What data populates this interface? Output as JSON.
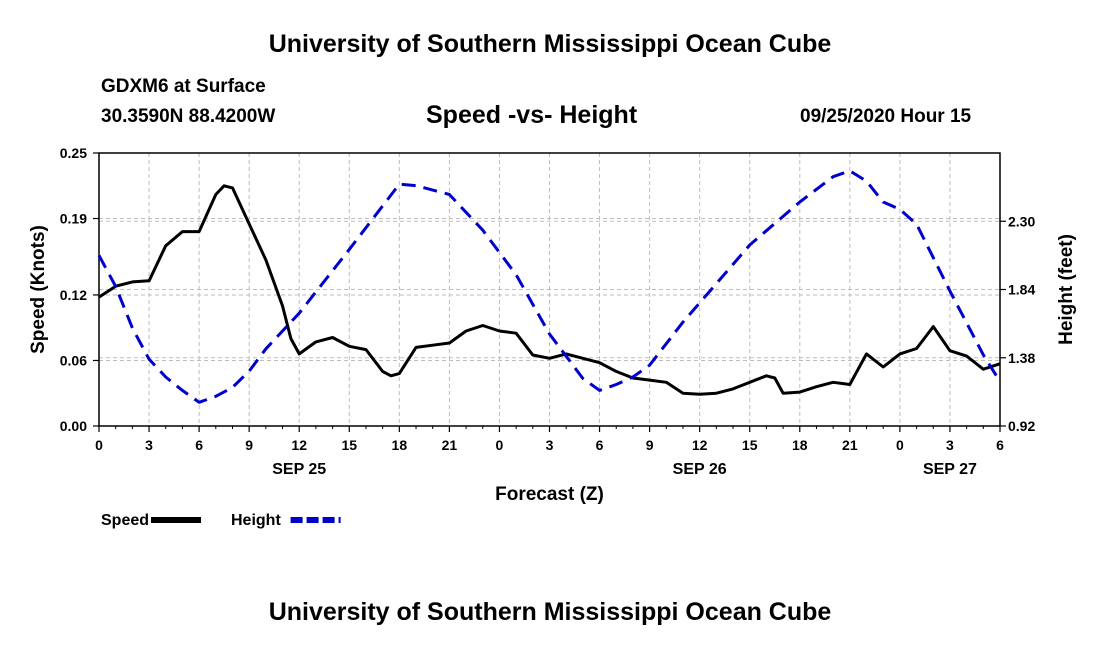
{
  "header": {
    "title": "University of Southern Mississippi Ocean Cube",
    "station": "GDXM6 at Surface",
    "coords": "30.3590N 88.4200W",
    "chart_title": "Speed -vs- Height",
    "timestamp": "09/25/2020 Hour 15"
  },
  "footer": {
    "title": "University of Southern Mississippi Ocean Cube"
  },
  "chart_data": {
    "type": "line",
    "title": "Speed -vs- Height",
    "xlabel": "Forecast (Z)",
    "ylabel": "Speed (Knots)",
    "y2label": "Height (feet)",
    "grid": true,
    "x_range": [
      0,
      54
    ],
    "x_ticks": [
      {
        "h": 0,
        "label": "0"
      },
      {
        "h": 3,
        "label": "3"
      },
      {
        "h": 6,
        "label": "6"
      },
      {
        "h": 9,
        "label": "9"
      },
      {
        "h": 12,
        "label": "12"
      },
      {
        "h": 15,
        "label": "15"
      },
      {
        "h": 18,
        "label": "18"
      },
      {
        "h": 21,
        "label": "21"
      },
      {
        "h": 24,
        "label": "0"
      },
      {
        "h": 27,
        "label": "3"
      },
      {
        "h": 30,
        "label": "6"
      },
      {
        "h": 33,
        "label": "9"
      },
      {
        "h": 36,
        "label": "12"
      },
      {
        "h": 39,
        "label": "15"
      },
      {
        "h": 42,
        "label": "18"
      },
      {
        "h": 45,
        "label": "21"
      },
      {
        "h": 48,
        "label": "0"
      },
      {
        "h": 51,
        "label": "3"
      },
      {
        "h": 54,
        "label": "6"
      }
    ],
    "date_labels": [
      {
        "h": 12,
        "label": "SEP 25"
      },
      {
        "h": 36,
        "label": "SEP 26"
      },
      {
        "h": 51,
        "label": "SEP 27"
      }
    ],
    "ylim_left": [
      0,
      0.25
    ],
    "yticks_left": [
      "0.00",
      "0.06",
      "0.12",
      "0.19",
      "0.25"
    ],
    "ylim_right": [
      0.92,
      2.76
    ],
    "yticks_right": [
      "0.92",
      "1.38",
      "1.84",
      "2.30"
    ],
    "legend": [
      {
        "name": "Speed",
        "color": "#000000",
        "dashed": false
      },
      {
        "name": "Height",
        "color": "#0000cc",
        "dashed": true
      }
    ],
    "series": [
      {
        "name": "Speed",
        "axis": "left",
        "color": "#000000",
        "x": [
          0,
          1,
          2,
          3,
          4,
          5,
          6,
          7,
          7.5,
          8,
          9,
          10,
          11,
          11.5,
          12,
          13,
          14,
          15,
          16,
          17,
          17.5,
          18,
          19,
          20,
          21,
          22,
          23,
          24,
          25,
          26,
          27,
          28,
          29,
          30,
          31,
          32,
          33,
          34,
          35,
          36,
          37,
          38,
          39,
          40,
          40.5,
          41,
          42,
          43,
          44,
          45,
          46,
          47,
          48,
          49,
          50,
          51,
          52,
          53,
          54
        ],
        "y": [
          0.118,
          0.128,
          0.132,
          0.133,
          0.165,
          0.178,
          0.178,
          0.212,
          0.22,
          0.218,
          0.185,
          0.152,
          0.11,
          0.08,
          0.066,
          0.077,
          0.081,
          0.073,
          0.07,
          0.05,
          0.046,
          0.048,
          0.072,
          0.074,
          0.076,
          0.087,
          0.092,
          0.087,
          0.085,
          0.065,
          0.062,
          0.066,
          0.062,
          0.058,
          0.05,
          0.044,
          0.042,
          0.04,
          0.03,
          0.029,
          0.03,
          0.034,
          0.04,
          0.046,
          0.044,
          0.03,
          0.031,
          0.036,
          0.04,
          0.038,
          0.066,
          0.054,
          0.066,
          0.071,
          0.091,
          0.069,
          0.064,
          0.052,
          0.057
        ]
      },
      {
        "name": "Height",
        "axis": "right",
        "color": "#0000cc",
        "x": [
          0,
          1,
          2,
          3,
          4,
          5,
          6,
          7,
          8,
          9,
          10,
          12,
          15,
          18,
          19,
          21,
          23,
          25,
          27,
          29,
          30,
          31,
          32,
          33,
          35,
          37,
          39,
          42,
          44,
          45,
          46,
          47,
          48,
          49,
          51,
          53,
          54
        ],
        "y": [
          2.07,
          1.86,
          1.58,
          1.37,
          1.25,
          1.16,
          1.08,
          1.12,
          1.18,
          1.29,
          1.44,
          1.68,
          2.11,
          2.55,
          2.54,
          2.48,
          2.24,
          1.94,
          1.54,
          1.24,
          1.16,
          1.2,
          1.25,
          1.33,
          1.62,
          1.88,
          2.14,
          2.43,
          2.6,
          2.64,
          2.57,
          2.43,
          2.38,
          2.28,
          1.83,
          1.4,
          1.22
        ]
      }
    ]
  }
}
